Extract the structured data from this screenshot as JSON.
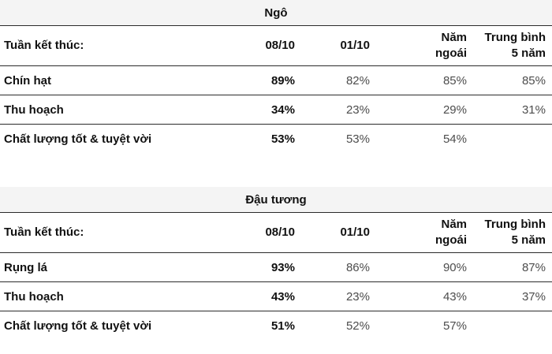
{
  "colors": {
    "title_bar_background": "#f4f4f4",
    "rule_line": "#2b2b2b",
    "primary_text": "#111111",
    "muted_value_text": "#4d4d4d",
    "page_background": "#ffffff"
  },
  "chart_data": [
    {
      "type": "table",
      "title": "Ngô",
      "columns": [
        "Tuần kết thúc:",
        "08/10",
        "01/10",
        "Năm ngoái",
        "Trung bình 5 năm"
      ],
      "rows": [
        {
          "label": "Chín hạt",
          "values": [
            "89%",
            "82%",
            "85%",
            "85%"
          ]
        },
        {
          "label": "Thu hoạch",
          "values": [
            "34%",
            "23%",
            "29%",
            "31%"
          ]
        },
        {
          "label": "Chất lượng tốt & tuyệt vời",
          "values": [
            "53%",
            "53%",
            "54%",
            ""
          ]
        }
      ]
    },
    {
      "type": "table",
      "title": "Đậu tương",
      "columns": [
        "Tuần kết thúc:",
        "08/10",
        "01/10",
        "Năm ngoái",
        "Trung bình 5 năm"
      ],
      "rows": [
        {
          "label": "Rụng lá",
          "values": [
            "93%",
            "86%",
            "90%",
            "87%"
          ]
        },
        {
          "label": "Thu hoạch",
          "values": [
            "43%",
            "23%",
            "43%",
            "37%"
          ]
        },
        {
          "label": "Chất lượng tốt & tuyệt vời",
          "values": [
            "51%",
            "52%",
            "57%",
            ""
          ]
        }
      ]
    }
  ]
}
